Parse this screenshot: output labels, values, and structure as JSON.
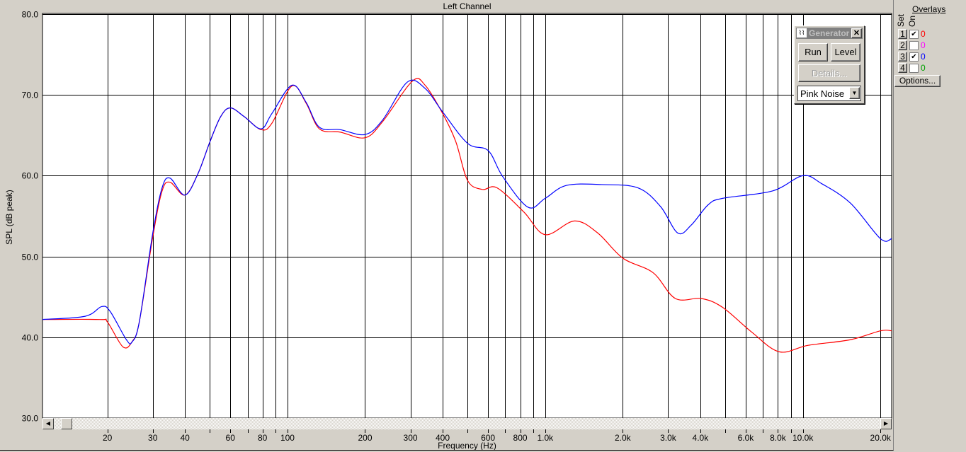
{
  "title": "Left Channel",
  "y_axis_label": "SPL (dB peak)",
  "x_axis_label": "Frequency (Hz)",
  "chart_data": {
    "type": "line",
    "title": "Left Channel",
    "xlabel": "Frequency (Hz)",
    "ylabel": "SPL (dB peak)",
    "x_scale": "log",
    "xlim": [
      11.2,
      22100
    ],
    "ylim": [
      30,
      80
    ],
    "grid": true,
    "y_ticks": [
      "80.0",
      "70.0",
      "60.0",
      "50.0",
      "40.0",
      "30.0"
    ],
    "y_tick_values": [
      80,
      70,
      60,
      50,
      40,
      30
    ],
    "x_gridlines": [
      20,
      30,
      40,
      50,
      60,
      70,
      80,
      90,
      100,
      200,
      300,
      400,
      500,
      600,
      700,
      800,
      900,
      1000,
      2000,
      3000,
      4000,
      5000,
      6000,
      7000,
      8000,
      9000,
      10000,
      20000
    ],
    "x_ticks": [
      {
        "v": 20,
        "label": "20"
      },
      {
        "v": 30,
        "label": "30"
      },
      {
        "v": 40,
        "label": "40"
      },
      {
        "v": 60,
        "label": "60"
      },
      {
        "v": 80,
        "label": "80"
      },
      {
        "v": 100,
        "label": "100"
      },
      {
        "v": 200,
        "label": "200"
      },
      {
        "v": 300,
        "label": "300"
      },
      {
        "v": 400,
        "label": "400"
      },
      {
        "v": 600,
        "label": "600"
      },
      {
        "v": 800,
        "label": "800"
      },
      {
        "v": 1000,
        "label": "1.0k"
      },
      {
        "v": 2000,
        "label": "2.0k"
      },
      {
        "v": 3000,
        "label": "3.0k"
      },
      {
        "v": 4000,
        "label": "4.0k"
      },
      {
        "v": 6000,
        "label": "6.0k"
      },
      {
        "v": 8000,
        "label": "8.0k"
      },
      {
        "v": 10000,
        "label": "10.0k"
      },
      {
        "v": 20000,
        "label": "20.0k"
      }
    ],
    "series": [
      {
        "color": "#ff0000",
        "points": [
          [
            11.2,
            42.2
          ],
          [
            18.7,
            42.2
          ],
          [
            20,
            41.9
          ],
          [
            23,
            38.8
          ],
          [
            25,
            39.5
          ],
          [
            26.6,
            41.9
          ],
          [
            30,
            52.4
          ],
          [
            32.6,
            58.1
          ],
          [
            35,
            59.2
          ],
          [
            40,
            57.6
          ],
          [
            45,
            60.3
          ],
          [
            50,
            64.2
          ],
          [
            55,
            67.3
          ],
          [
            60,
            68.4
          ],
          [
            68,
            67.3
          ],
          [
            79,
            65.7
          ],
          [
            87,
            66.5
          ],
          [
            104,
            71.1
          ],
          [
            118,
            69
          ],
          [
            133,
            65.8
          ],
          [
            160,
            65.4
          ],
          [
            200,
            64.7
          ],
          [
            234,
            66.7
          ],
          [
            305,
            71.7
          ],
          [
            342,
            71.2
          ],
          [
            400,
            67.7
          ],
          [
            450,
            64.2
          ],
          [
            500,
            59.4
          ],
          [
            570,
            58.3
          ],
          [
            650,
            58.5
          ],
          [
            827,
            55.5
          ],
          [
            1000,
            52.7
          ],
          [
            1300,
            54.4
          ],
          [
            1600,
            52.9
          ],
          [
            2000,
            49.8
          ],
          [
            2620,
            48
          ],
          [
            3200,
            44.8
          ],
          [
            4040,
            44.8
          ],
          [
            4880,
            43.7
          ],
          [
            6350,
            40.6
          ],
          [
            8100,
            38.2
          ],
          [
            10480,
            39
          ],
          [
            15300,
            39.7
          ],
          [
            20000,
            40.8
          ],
          [
            22100,
            40.8
          ]
        ]
      },
      {
        "color": "#0000ff",
        "points": [
          [
            11.2,
            42.2
          ],
          [
            16.4,
            42.6
          ],
          [
            19,
            43.8
          ],
          [
            20.5,
            43.2
          ],
          [
            23.7,
            39.7
          ],
          [
            24.9,
            39.4
          ],
          [
            26.6,
            41.9
          ],
          [
            30,
            52.9
          ],
          [
            32.6,
            58.5
          ],
          [
            35,
            59.7
          ],
          [
            40,
            57.6
          ],
          [
            45,
            60.3
          ],
          [
            50,
            64.2
          ],
          [
            55,
            67.3
          ],
          [
            60,
            68.4
          ],
          [
            68,
            67.3
          ],
          [
            79,
            65.8
          ],
          [
            87,
            67.7
          ],
          [
            104,
            71.2
          ],
          [
            118,
            69.1
          ],
          [
            133,
            66
          ],
          [
            160,
            65.7
          ],
          [
            200,
            65.1
          ],
          [
            234,
            66.9
          ],
          [
            292,
            71.6
          ],
          [
            342,
            70.8
          ],
          [
            400,
            67.9
          ],
          [
            500,
            64
          ],
          [
            601,
            63.1
          ],
          [
            684,
            59.9
          ],
          [
            858,
            56.1
          ],
          [
            1000,
            57.2
          ],
          [
            1210,
            58.8
          ],
          [
            1660,
            58.9
          ],
          [
            2290,
            58.5
          ],
          [
            2800,
            56.2
          ],
          [
            3270,
            52.9
          ],
          [
            3690,
            53.9
          ],
          [
            4290,
            56.4
          ],
          [
            4880,
            57.2
          ],
          [
            7600,
            58.1
          ],
          [
            10000,
            60
          ],
          [
            11850,
            59
          ],
          [
            15300,
            56.6
          ],
          [
            20000,
            52.2
          ],
          [
            22100,
            52.2
          ]
        ]
      }
    ]
  },
  "generator": {
    "title": "Generator",
    "run": "Run",
    "level": "Level",
    "details": "Details...",
    "signal": "Pink Noise"
  },
  "overlays": {
    "title": "Overlays",
    "set_label": "Set",
    "on_label": "On",
    "options": "Options...",
    "rows": [
      {
        "set": "1",
        "on": true,
        "value": "0",
        "color": "#ff0000"
      },
      {
        "set": "2",
        "on": false,
        "value": "0",
        "color": "#ff00ff"
      },
      {
        "set": "3",
        "on": true,
        "value": "0",
        "color": "#0000ff"
      },
      {
        "set": "4",
        "on": false,
        "value": "0",
        "color": "#00a000"
      }
    ]
  }
}
